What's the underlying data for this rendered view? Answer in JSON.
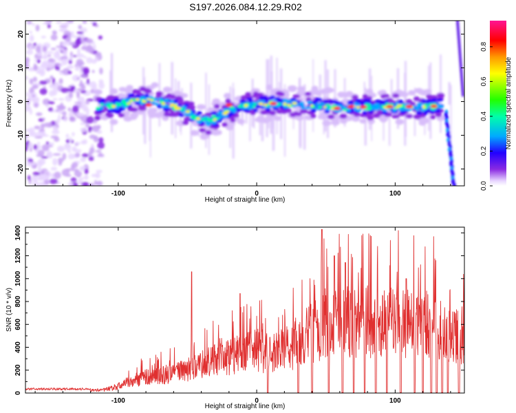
{
  "title": "S197.2026.084.12.29.R02",
  "chart_data": [
    {
      "type": "heatmap",
      "name": "spectrogram",
      "xlabel": "Height of straight line (km)",
      "ylabel": "Frequency (Hz)",
      "xlim": [
        -167,
        150
      ],
      "ylim": [
        -25,
        24
      ],
      "xticks": [
        -100,
        0,
        100
      ],
      "yticks": [
        -20,
        -10,
        0,
        10,
        20
      ],
      "colorbar": {
        "label": "Normalized spectral amplitude",
        "range": [
          0.0,
          0.95
        ],
        "ticks": [
          0.0,
          0.2,
          0.4,
          0.6,
          0.8
        ],
        "tick_labels": [
          "0.0",
          "0.2",
          "0.4",
          "0.6",
          "0.8"
        ],
        "colors": [
          "#ffffff",
          "#e8d6ff",
          "#8a2be2",
          "#2200ff",
          "#00aaff",
          "#00ffaa",
          "#22ff00",
          "#ffff00",
          "#ff9900",
          "#ff0000",
          "#ff1493"
        ]
      },
      "ridge": {
        "description": "main frequency ridge (Hz) vs height (km)",
        "x": [
          -115,
          -100,
          -85,
          -70,
          -55,
          -45,
          -35,
          -25,
          -15,
          -5,
          0,
          10,
          20,
          30,
          40,
          50,
          60,
          70,
          80,
          90,
          100,
          110,
          120,
          130
        ],
        "y": [
          -1.5,
          -1,
          0.5,
          0,
          -2,
          -4.5,
          -6,
          -4,
          -2,
          -1,
          -1,
          -0.5,
          -0.5,
          -1,
          -1,
          -1.5,
          -2,
          -1.5,
          -1.5,
          -1.5,
          -1.5,
          -1.5,
          -1.5,
          -1.5
        ]
      }
    },
    {
      "type": "line",
      "name": "snr",
      "xlabel": "Height of straight line (km)",
      "ylabel": "SNR (10 * v/v)",
      "xlim": [
        -167,
        150
      ],
      "ylim": [
        0,
        1450
      ],
      "xticks": [
        -100,
        0,
        100
      ],
      "yticks": [
        0,
        200,
        400,
        600,
        800,
        1000,
        1200,
        1400
      ],
      "color": "#e03030",
      "envelope": {
        "x": [
          -167,
          -120,
          -110,
          -100,
          -90,
          -80,
          -70,
          -60,
          -50,
          -40,
          -30,
          -20,
          -10,
          0,
          10,
          20,
          30,
          40,
          50,
          60,
          70,
          80,
          90,
          100,
          110,
          120,
          130,
          140,
          150
        ],
        "y": [
          30,
          30,
          40,
          80,
          150,
          190,
          210,
          240,
          280,
          330,
          430,
          450,
          480,
          520,
          480,
          520,
          620,
          720,
          840,
          860,
          840,
          860,
          820,
          860,
          860,
          840,
          800,
          650,
          720
        ]
      },
      "peaks": [
        {
          "x": -47,
          "y": 1060
        },
        {
          "x": -12,
          "y": 870
        },
        {
          "x": 47,
          "y": 1430
        },
        {
          "x": 56,
          "y": 1200
        },
        {
          "x": 64,
          "y": 1140
        },
        {
          "x": 94,
          "y": 1330
        },
        {
          "x": 108,
          "y": 1000
        }
      ],
      "dropouts_x": [
        8,
        30,
        40,
        52,
        62,
        70,
        78,
        86,
        94,
        104,
        114,
        120,
        126,
        130,
        134,
        138,
        146
      ]
    }
  ]
}
